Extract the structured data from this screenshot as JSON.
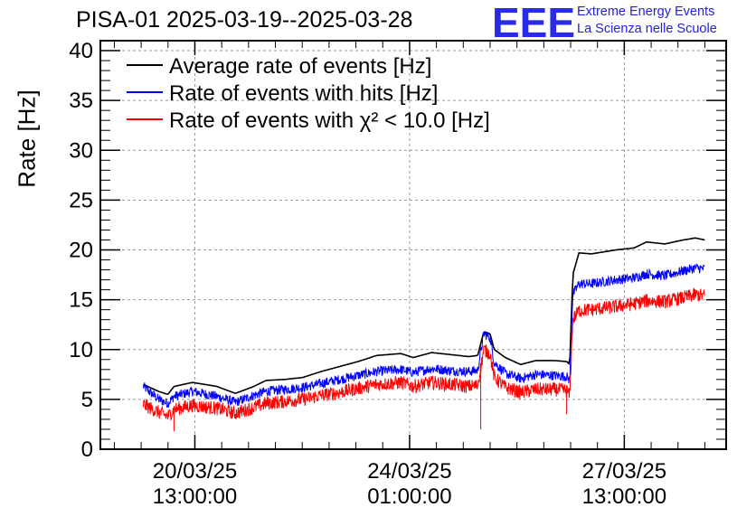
{
  "header": {
    "title": "PISA-01 2025-03-19--2025-03-28",
    "logo_mark": "EEE",
    "logo_line1": "Extreme Energy Events",
    "logo_line2": "La Scienza nelle Scuole"
  },
  "chart_data": {
    "type": "line",
    "title": "PISA-01 2025-03-19--2025-03-28",
    "xlabel": "",
    "ylabel": "Rate [Hz]",
    "ylim": [
      0,
      41
    ],
    "xlim": [
      0,
      10.2
    ],
    "x_unit": "days since 19/03/25 00:00",
    "yticks": [
      0,
      5,
      10,
      15,
      20,
      25,
      30,
      35,
      40
    ],
    "yticks_labels": [
      "0",
      "5",
      "10",
      "15",
      "20",
      "25",
      "30",
      "35",
      "40"
    ],
    "xticks": [
      {
        "x": 1.54,
        "line1": "20/03/25",
        "line2": "13:00:00"
      },
      {
        "x": 5.04,
        "line1": "24/03/25",
        "line2": "01:00:00"
      },
      {
        "x": 8.54,
        "line1": "27/03/25",
        "line2": "13:00:00"
      }
    ],
    "grid": true,
    "legend_position": "top-left",
    "series": [
      {
        "name": "Average rate of events [Hz]",
        "color": "#000000",
        "noise": 0,
        "points": [
          [
            0.7,
            6.5
          ],
          [
            0.95,
            5.8
          ],
          [
            1.1,
            5.5
          ],
          [
            1.2,
            6.3
          ],
          [
            1.5,
            6.7
          ],
          [
            1.9,
            6.3
          ],
          [
            2.2,
            5.6
          ],
          [
            2.5,
            6.3
          ],
          [
            2.7,
            6.9
          ],
          [
            3.0,
            7.0
          ],
          [
            3.3,
            7.2
          ],
          [
            3.6,
            7.8
          ],
          [
            3.9,
            8.3
          ],
          [
            4.2,
            8.8
          ],
          [
            4.5,
            9.4
          ],
          [
            4.9,
            9.6
          ],
          [
            5.1,
            9.2
          ],
          [
            5.4,
            9.7
          ],
          [
            5.7,
            9.5
          ],
          [
            6.0,
            9.3
          ],
          [
            6.15,
            9.4
          ],
          [
            6.25,
            11.8
          ],
          [
            6.35,
            11.6
          ],
          [
            6.42,
            10.0
          ],
          [
            6.6,
            9.2
          ],
          [
            6.85,
            8.5
          ],
          [
            7.1,
            8.9
          ],
          [
            7.4,
            8.9
          ],
          [
            7.6,
            8.8
          ],
          [
            7.65,
            8.5
          ],
          [
            7.7,
            17.5
          ],
          [
            7.8,
            19.7
          ],
          [
            8.0,
            19.6
          ],
          [
            8.4,
            20.0
          ],
          [
            8.7,
            20.2
          ],
          [
            8.9,
            20.8
          ],
          [
            9.2,
            20.6
          ],
          [
            9.5,
            21.0
          ],
          [
            9.7,
            21.2
          ],
          [
            9.85,
            21.0
          ]
        ]
      },
      {
        "name": "Rate of events with hits [Hz]",
        "color": "#0000ff",
        "noise": 0.5,
        "points": [
          [
            0.7,
            6.3
          ],
          [
            0.95,
            5.0
          ],
          [
            1.1,
            4.6
          ],
          [
            1.2,
            5.3
          ],
          [
            1.5,
            5.8
          ],
          [
            1.9,
            5.3
          ],
          [
            2.2,
            4.7
          ],
          [
            2.5,
            5.4
          ],
          [
            2.7,
            5.8
          ],
          [
            3.0,
            6.0
          ],
          [
            3.3,
            6.2
          ],
          [
            3.6,
            6.6
          ],
          [
            3.9,
            7.0
          ],
          [
            4.2,
            7.4
          ],
          [
            4.5,
            7.8
          ],
          [
            4.9,
            8.0
          ],
          [
            5.1,
            7.7
          ],
          [
            5.4,
            8.1
          ],
          [
            5.7,
            7.9
          ],
          [
            6.0,
            7.8
          ],
          [
            6.15,
            7.9
          ],
          [
            6.25,
            11.6
          ],
          [
            6.35,
            11.2
          ],
          [
            6.42,
            8.7
          ],
          [
            6.6,
            7.6
          ],
          [
            6.85,
            7.1
          ],
          [
            7.1,
            7.5
          ],
          [
            7.4,
            7.4
          ],
          [
            7.6,
            7.3
          ],
          [
            7.65,
            6.9
          ],
          [
            7.7,
            15.5
          ],
          [
            7.8,
            16.6
          ],
          [
            8.0,
            16.6
          ],
          [
            8.4,
            17.0
          ],
          [
            8.7,
            17.2
          ],
          [
            8.9,
            17.6
          ],
          [
            9.2,
            17.4
          ],
          [
            9.5,
            17.9
          ],
          [
            9.7,
            18.2
          ],
          [
            9.85,
            18.1
          ]
        ]
      },
      {
        "name": "Rate of events with χ² < 10.0 [Hz]",
        "color": "#ff0000",
        "noise": 0.7,
        "points": [
          [
            0.7,
            4.5
          ],
          [
            0.95,
            3.7
          ],
          [
            1.1,
            3.3
          ],
          [
            1.2,
            4.0
          ],
          [
            1.5,
            4.4
          ],
          [
            1.9,
            4.1
          ],
          [
            2.2,
            3.6
          ],
          [
            2.5,
            4.2
          ],
          [
            2.7,
            4.6
          ],
          [
            3.0,
            4.8
          ],
          [
            3.3,
            5.0
          ],
          [
            3.6,
            5.4
          ],
          [
            3.9,
            5.7
          ],
          [
            4.2,
            6.1
          ],
          [
            4.5,
            6.5
          ],
          [
            4.9,
            6.7
          ],
          [
            5.1,
            6.3
          ],
          [
            5.4,
            6.7
          ],
          [
            5.7,
            6.5
          ],
          [
            6.0,
            6.3
          ],
          [
            6.15,
            6.4
          ],
          [
            6.25,
            10.0
          ],
          [
            6.35,
            9.6
          ],
          [
            6.42,
            7.2
          ],
          [
            6.6,
            6.2
          ],
          [
            6.85,
            5.7
          ],
          [
            7.1,
            6.0
          ],
          [
            7.4,
            6.0
          ],
          [
            7.6,
            5.9
          ],
          [
            7.65,
            5.4
          ],
          [
            7.7,
            13.0
          ],
          [
            7.8,
            13.9
          ],
          [
            8.0,
            14.0
          ],
          [
            8.4,
            14.3
          ],
          [
            8.7,
            14.6
          ],
          [
            8.9,
            14.9
          ],
          [
            9.2,
            14.8
          ],
          [
            9.5,
            15.2
          ],
          [
            9.7,
            15.5
          ],
          [
            9.85,
            15.4
          ]
        ],
        "dips": [
          [
            1.2,
            1.8
          ],
          [
            6.2,
            2.0
          ],
          [
            7.6,
            3.5
          ]
        ]
      }
    ]
  }
}
